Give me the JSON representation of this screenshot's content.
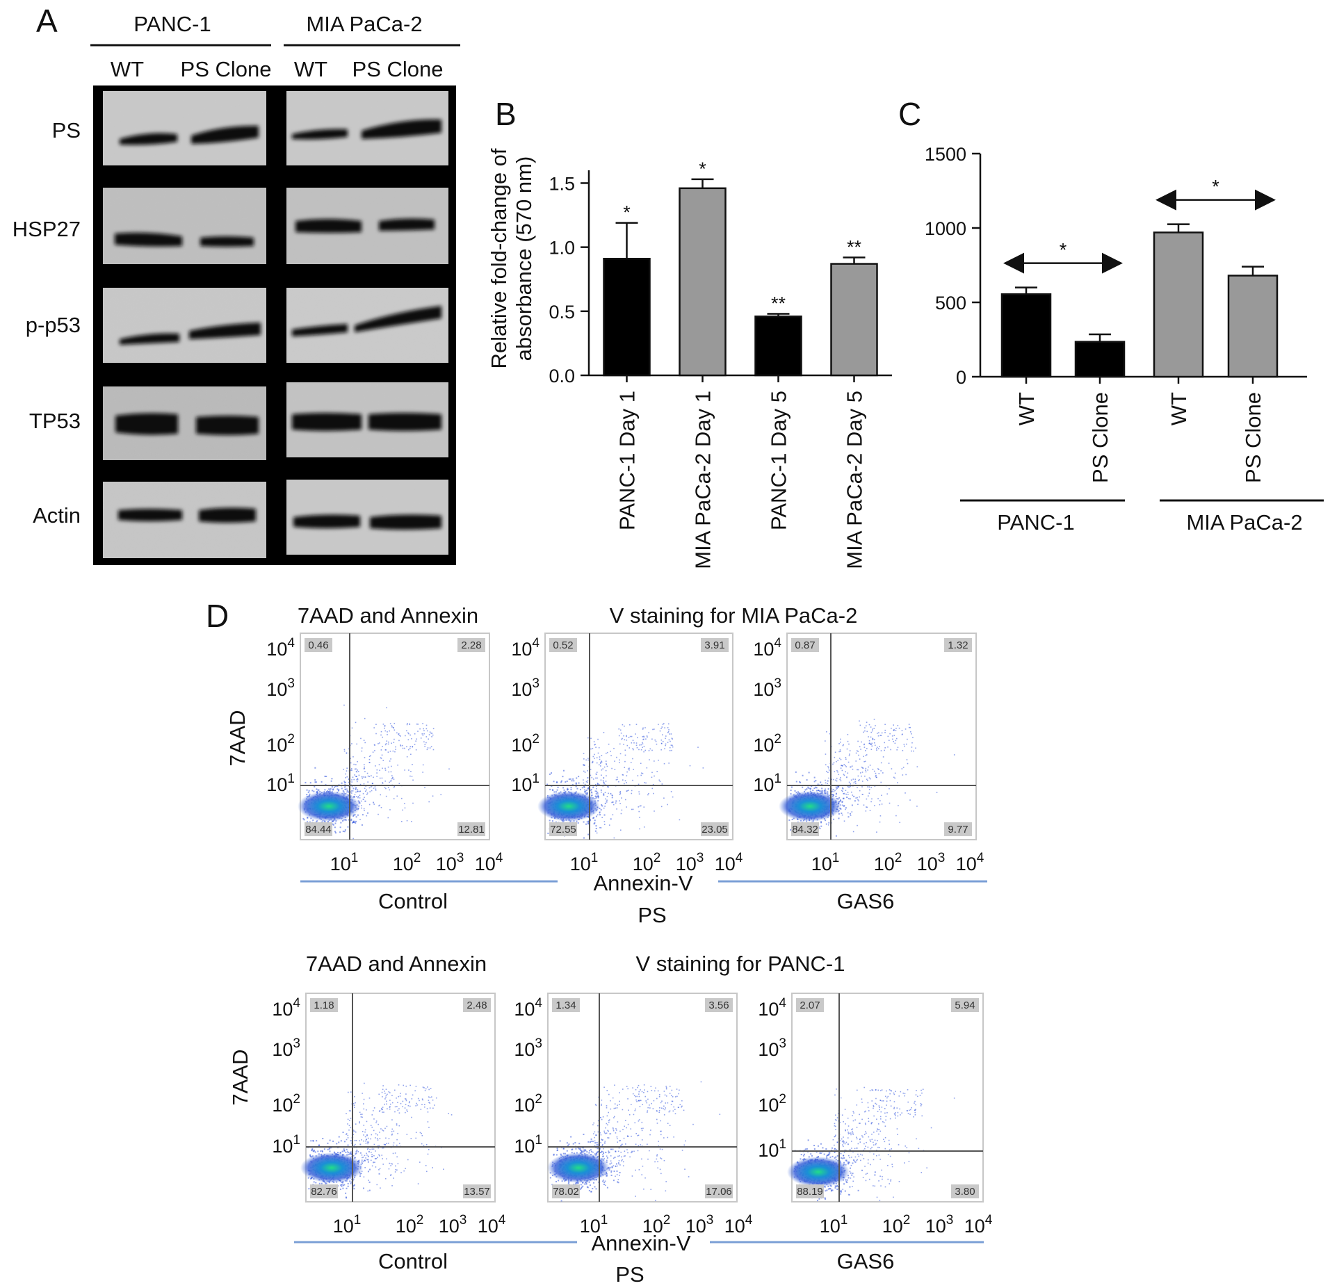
{
  "panels": {
    "a": "A",
    "b": "B",
    "c": "C",
    "d": "D"
  },
  "western": {
    "groups": [
      "PANC-1",
      "MIA PaCa-2"
    ],
    "lanes": [
      "WT",
      "PS Clone",
      "WT",
      "PS Clone"
    ],
    "rows": [
      "PS",
      "HSP27",
      "p-p53",
      "TP53",
      "Actin"
    ]
  },
  "chart_data": [
    {
      "type": "bar",
      "panel": "B",
      "categories": [
        "PANC-1 Day 1",
        "MIA PaCa-2 Day 1",
        "PANC-1 Day 5",
        "MIA PaCa-2 Day 5"
      ],
      "values": [
        0.91,
        1.46,
        0.46,
        0.87
      ],
      "errors": [
        0.28,
        0.07,
        0.02,
        0.05
      ],
      "significance": [
        "*",
        "*",
        "**",
        "**"
      ],
      "colors": [
        "#000000",
        "#999999",
        "#000000",
        "#999999"
      ],
      "ylabel_lines": [
        "Relative fold-change of",
        "absorbance (570 nm)"
      ],
      "yticks": [
        "0.0",
        "0.5",
        "1.0",
        "1.5"
      ],
      "ylim": [
        0,
        1.6
      ]
    },
    {
      "type": "bar",
      "panel": "C",
      "categories": [
        "WT",
        "PS Clone",
        "WT",
        "PS Clone"
      ],
      "groups": [
        "PANC-1",
        "MIA PaCa-2"
      ],
      "values": [
        555,
        235,
        970,
        680
      ],
      "errors": [
        45,
        50,
        55,
        60
      ],
      "significance": [
        "*",
        "*"
      ],
      "colors": [
        "#000000",
        "#000000",
        "#999999",
        "#999999"
      ],
      "yticks": [
        "0",
        "500",
        "1000",
        "1500"
      ],
      "ylim": [
        0,
        1500
      ]
    }
  ],
  "flow": [
    {
      "title_left": "7AAD and Annexin",
      "title_right": "V staining for MIA PaCa-2",
      "ylabel": "7AAD",
      "xlabel": "Annexin-V",
      "conditions": [
        "Control",
        "PS",
        "GAS6"
      ],
      "plots": [
        {
          "ul": "0.46",
          "ur": "2.28",
          "ll": "84.44",
          "lr": "12.81"
        },
        {
          "ul": "0.52",
          "ur": "3.91",
          "ll": "72.55",
          "lr": "23.05"
        },
        {
          "ul": "0.87",
          "ur": "1.32",
          "ll": "84.32",
          "lr": "9.77"
        }
      ]
    },
    {
      "title_left": "7AAD and Annexin",
      "title_right": "V staining for PANC-1",
      "ylabel": "7AAD",
      "xlabel": "Annexin-V",
      "conditions": [
        "Control",
        "PS",
        "GAS6"
      ],
      "plots": [
        {
          "ul": "1.18",
          "ur": "2.48",
          "ll": "82.76",
          "lr": "13.57"
        },
        {
          "ul": "1.34",
          "ur": "3.56",
          "ll": "78.02",
          "lr": "17.06"
        },
        {
          "ul": "2.07",
          "ur": "5.94",
          "ll": "88.19",
          "lr": "3.80"
        }
      ]
    }
  ],
  "flow_axis": {
    "base": "10",
    "exponents": [
      "1",
      "2",
      "3",
      "4"
    ]
  }
}
